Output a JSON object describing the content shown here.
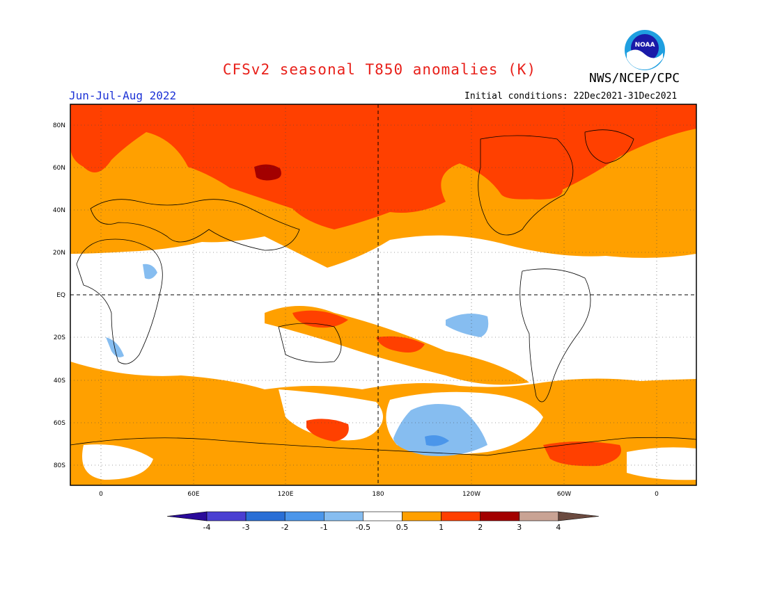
{
  "header": {
    "title": "CFSv2 seasonal T850 anomalies (K)",
    "agency": "NWS/NCEP/CPC",
    "season": "Jun-Jul-Aug 2022",
    "initial_conditions": "Initial conditions: 22Dec2021-31Dec2021",
    "logo_text": "NOAA"
  },
  "map": {
    "lat_labels": [
      "80N",
      "60N",
      "40N",
      "20N",
      "EQ",
      "20S",
      "40S",
      "60S",
      "80S"
    ],
    "lon_labels": [
      "0",
      "60E",
      "120E",
      "180",
      "120W",
      "60W",
      "0"
    ]
  },
  "colorbar": {
    "labels": [
      "-4",
      "-3",
      "-2",
      "-1",
      "-0.5",
      "0.5",
      "1",
      "2",
      "3",
      "4"
    ],
    "colors": [
      "#2a0a9a",
      "#4a3fd2",
      "#2a6fd6",
      "#4b96ea",
      "#86bdf0",
      "#ffffff",
      "#ffa000",
      "#ff4000",
      "#a30000",
      "#c9a394",
      "#6b4a3f"
    ]
  }
}
